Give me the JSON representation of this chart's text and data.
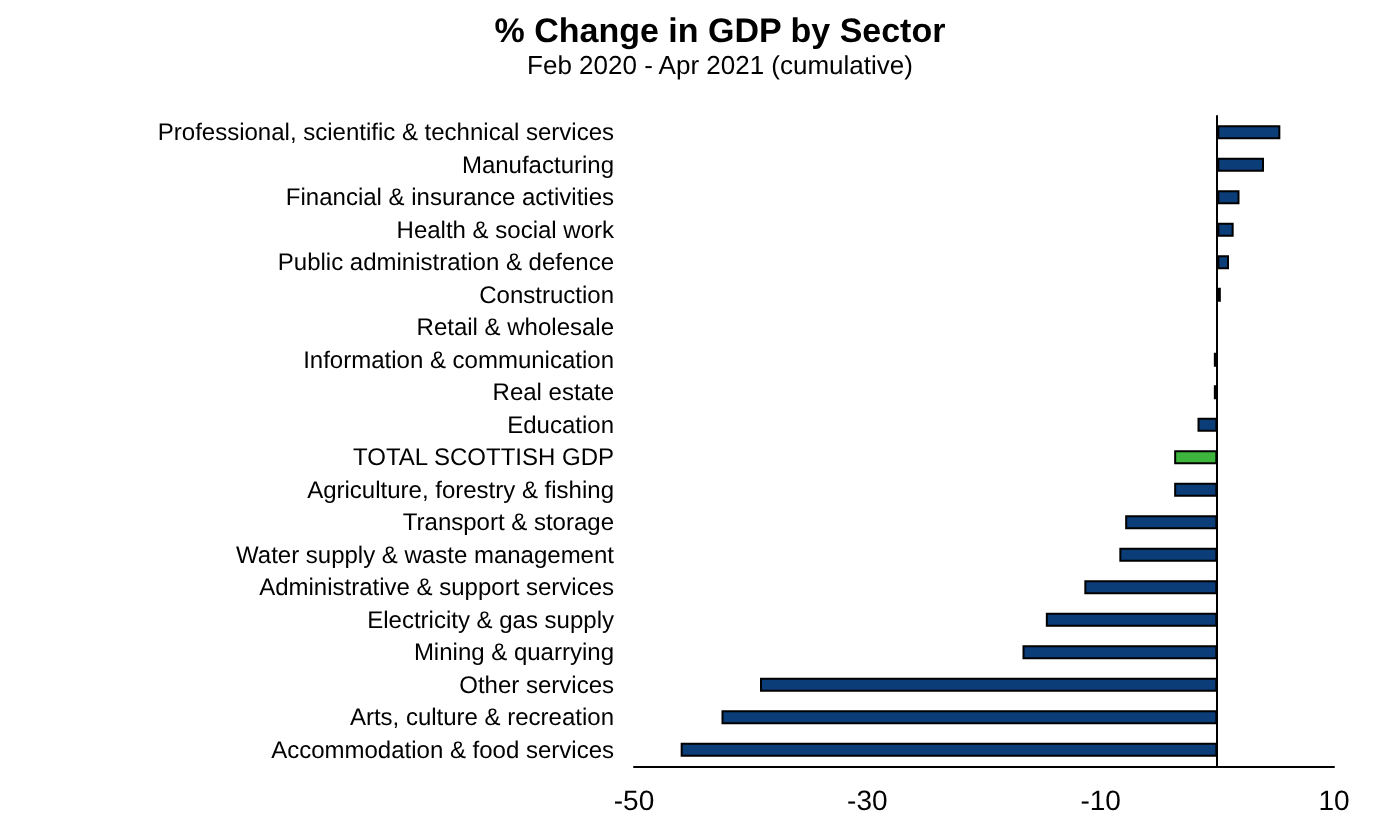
{
  "chart_data": {
    "type": "bar",
    "orientation": "horizontal",
    "title": "% Change in GDP by Sector",
    "subtitle": "Feb 2020 - Apr 2021 (cumulative)",
    "categories": [
      "Professional, scientific & technical services",
      "Manufacturing",
      "Financial & insurance activities",
      "Health & social work",
      "Public administration & defence",
      "Construction",
      "Retail & wholesale",
      "Information & communication",
      "Real estate",
      "Education",
      "TOTAL SCOTTISH GDP",
      "Agriculture, forestry & fishing",
      "Transport & storage",
      "Water supply & waste management",
      "Administrative & support services",
      "Electricity & gas supply",
      "Mining & quarrying",
      "Other services",
      "Arts, culture & recreation",
      "Accommodation & food services"
    ],
    "values": [
      5.4,
      4.0,
      1.9,
      1.4,
      1.0,
      0.3,
      0,
      -0.3,
      -0.3,
      -1.7,
      -3.7,
      -3.7,
      -7.9,
      -8.4,
      -11.4,
      -14.7,
      -16.7,
      -39.2,
      -42.5,
      -46.0
    ],
    "colors": [
      "#0b3d78",
      "#0b3d78",
      "#0b3d78",
      "#0b3d78",
      "#0b3d78",
      "#0b3d78",
      "#0b3d78",
      "#0b3d78",
      "#0b3d78",
      "#0b3d78",
      "#3db53d",
      "#0b3d78",
      "#0b3d78",
      "#0b3d78",
      "#0b3d78",
      "#0b3d78",
      "#0b3d78",
      "#0b3d78",
      "#0b3d78",
      "#0b3d78"
    ],
    "xlim": [
      -50,
      10
    ],
    "xticks": [
      -50,
      -30,
      -10,
      10
    ],
    "grid": false
  }
}
